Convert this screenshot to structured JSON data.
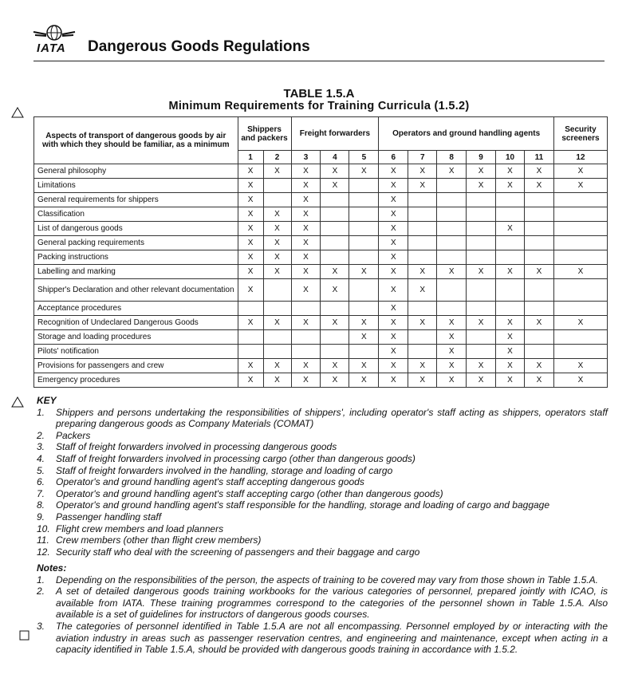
{
  "header": {
    "logo_text": "IATA",
    "title": "Dangerous Goods Regulations"
  },
  "table": {
    "title": "TABLE 1.5.A",
    "subtitle": "Minimum Requirements for Training Curricula (1.5.2)",
    "aspect_header": "Aspects of transport of dangerous goods by air with which they should be familiar, as a minimum",
    "groups": [
      "Shippers and packers",
      "Freight forwarders",
      "Operators and ground handling agents",
      "Security screeners"
    ],
    "columns": [
      1,
      2,
      3,
      4,
      5,
      6,
      7,
      8,
      9,
      10,
      11,
      12
    ],
    "rows": [
      {
        "label": "General philosophy",
        "cells": [
          "X",
          "X",
          "X",
          "X",
          "X",
          "X",
          "X",
          "X",
          "X",
          "X",
          "X",
          "X"
        ]
      },
      {
        "label": "Limitations",
        "cells": [
          "X",
          null,
          "X",
          "X",
          null,
          "X",
          "X",
          null,
          "X",
          "X",
          "X",
          "X"
        ]
      },
      {
        "label": "General requirements for shippers",
        "cells": [
          "X",
          null,
          "X",
          null,
          null,
          "X",
          null,
          null,
          null,
          null,
          null,
          null
        ]
      },
      {
        "label": "Classification",
        "cells": [
          "X",
          "X",
          "X",
          null,
          null,
          "X",
          null,
          null,
          null,
          null,
          null,
          null
        ]
      },
      {
        "label": "List of dangerous goods",
        "cells": [
          "X",
          "X",
          "X",
          null,
          null,
          "X",
          null,
          null,
          null,
          "X",
          null,
          null
        ]
      },
      {
        "label": "General packing requirements",
        "cells": [
          "X",
          "X",
          "X",
          null,
          null,
          "X",
          null,
          null,
          null,
          null,
          null,
          null
        ]
      },
      {
        "label": "Packing instructions",
        "cells": [
          "X",
          "X",
          "X",
          null,
          null,
          "X",
          null,
          null,
          null,
          null,
          null,
          null
        ]
      },
      {
        "label": "Labelling and marking",
        "cells": [
          "X",
          "X",
          "X",
          "X",
          "X",
          "X",
          "X",
          "X",
          "X",
          "X",
          "X",
          "X"
        ]
      },
      {
        "label": "Shipper's Declaration and other relevant documentation",
        "cells": [
          "X",
          null,
          "X",
          "X",
          null,
          "X",
          "X",
          null,
          null,
          null,
          null,
          null
        ]
      },
      {
        "label": "Acceptance procedures",
        "cells": [
          null,
          null,
          null,
          null,
          null,
          "X",
          null,
          null,
          null,
          null,
          null,
          null
        ]
      },
      {
        "label": "Recognition of Undeclared Dangerous Goods",
        "cells": [
          "X",
          "X",
          "X",
          "X",
          "X",
          "X",
          "X",
          "X",
          "X",
          "X",
          "X",
          "X"
        ]
      },
      {
        "label": "Storage and loading procedures",
        "cells": [
          null,
          null,
          null,
          null,
          "X",
          "X",
          null,
          "X",
          null,
          "X",
          null,
          null
        ]
      },
      {
        "label": "Pilots' notification",
        "cells": [
          null,
          null,
          null,
          null,
          null,
          "X",
          null,
          "X",
          null,
          "X",
          null,
          null
        ]
      },
      {
        "label": "Provisions for passengers and crew",
        "cells": [
          "X",
          "X",
          "X",
          "X",
          "X",
          "X",
          "X",
          "X",
          "X",
          "X",
          "X",
          "X"
        ]
      },
      {
        "label": "Emergency procedures",
        "cells": [
          "X",
          "X",
          "X",
          "X",
          "X",
          "X",
          "X",
          "X",
          "X",
          "X",
          "X",
          "X"
        ]
      }
    ]
  },
  "key": {
    "title": "KEY",
    "items": [
      {
        "number": "1.",
        "text": "Shippers and persons undertaking the responsibilities of shippers', including operator's staff acting as shippers, operators staff preparing dangerous goods as Company Materials (COMAT)"
      },
      {
        "number": "2.",
        "text": "Packers"
      },
      {
        "number": "3.",
        "text": "Staff of freight forwarders involved in processing dangerous goods"
      },
      {
        "number": "4.",
        "text": "Staff of freight forwarders involved in processing cargo (other than dangerous goods)"
      },
      {
        "number": "5.",
        "text": "Staff of freight forwarders involved in the handling, storage and loading of cargo"
      },
      {
        "number": "6.",
        "text": "Operator's and ground handling agent's staff accepting dangerous goods"
      },
      {
        "number": "7.",
        "text": "Operator's and ground handling agent's staff accepting cargo (other than dangerous goods)"
      },
      {
        "number": "8.",
        "text": "Operator's and ground handling agent's staff responsible for the handling, storage and loading of cargo and baggage"
      },
      {
        "number": "9.",
        "text": "Passenger handling staff"
      },
      {
        "number": "10.",
        "text": "Flight crew members and load planners"
      },
      {
        "number": "11.",
        "text": "Crew members (other than flight crew members)"
      },
      {
        "number": "12.",
        "text": "Security staff who deal with the screening of passengers and their baggage and cargo"
      }
    ]
  },
  "notes": {
    "title": "Notes:",
    "items": [
      {
        "number": "1.",
        "text": "Depending on the responsibilities of the person, the aspects of training to be covered may vary from those shown in Table 1.5.A."
      },
      {
        "number": "2.",
        "text": "A set of detailed dangerous goods training workbooks for the various categories of personnel, prepared jointly with ICAO, is available from IATA. These training programmes correspond to the categories of the personnel shown in Table 1.5.A. Also available is a set of guidelines for instructors of dangerous goods courses."
      },
      {
        "number": "3.",
        "text": "The categories of personnel identified in Table 1.5.A are not all encompassing. Personnel employed by or interacting with the aviation industry in areas such as passenger reservation centres, and engineering and maintenance, except when acting in a capacity identified in Table 1.5.A, should be provided with dangerous goods training in accordance with 1.5.2."
      }
    ]
  }
}
